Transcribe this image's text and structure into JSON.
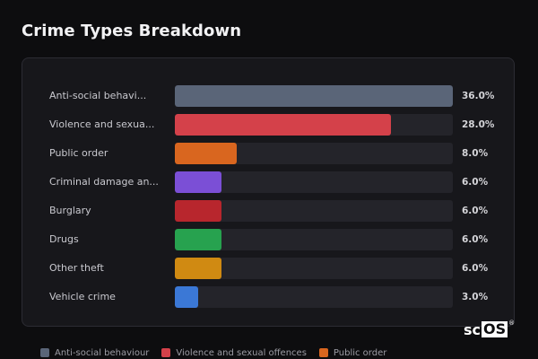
{
  "title": "Crime Types Breakdown",
  "chart_data": {
    "type": "bar",
    "orientation": "horizontal",
    "categories": [
      "Anti-social behavi...",
      "Violence and sexua...",
      "Public order",
      "Criminal damage an...",
      "Burglary",
      "Drugs",
      "Other theft",
      "Vehicle crime"
    ],
    "values": [
      36.0,
      28.0,
      8.0,
      6.0,
      6.0,
      6.0,
      6.0,
      3.0
    ],
    "value_labels": [
      "36.0%",
      "28.0%",
      "8.0%",
      "6.0%",
      "6.0%",
      "6.0%",
      "6.0%",
      "3.0%"
    ],
    "colors": [
      "#5a6578",
      "#d4414a",
      "#d9661f",
      "#7b4fd6",
      "#b8262d",
      "#27a24f",
      "#d08a12",
      "#3b78d6"
    ],
    "xlim": [
      0,
      36
    ],
    "grid": false
  },
  "legend": [
    {
      "label": "Anti-social behaviour",
      "color": "#5a6578"
    },
    {
      "label": "Violence and sexual offences",
      "color": "#d4414a"
    },
    {
      "label": "Public order",
      "color": "#d9661f"
    }
  ],
  "watermark": {
    "text_plain": "sc",
    "text_boxed": "OS",
    "mark": "®"
  }
}
